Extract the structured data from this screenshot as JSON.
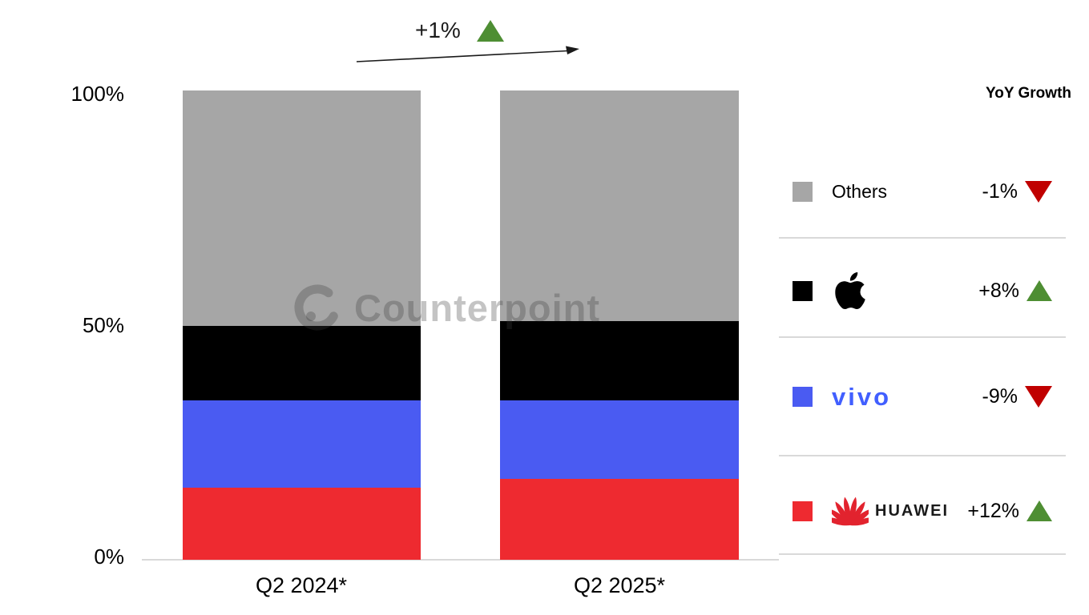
{
  "annotation": {
    "total_growth_label": "+1%"
  },
  "watermark": {
    "text": "Counterpoint"
  },
  "y_axis": {
    "ticks": [
      "100%",
      "50%",
      "0%"
    ]
  },
  "x_axis": {
    "categories": [
      "Q2 2024*",
      "Q2 2025*"
    ]
  },
  "legend": {
    "header": "YoY Growth",
    "rows": [
      {
        "name": "Others",
        "label": "Others",
        "color": "#A6A6A6",
        "growth": "-1%",
        "direction": "down"
      },
      {
        "name": "Apple",
        "label": "",
        "color": "#000000",
        "growth": "+8%",
        "direction": "up"
      },
      {
        "name": "vivo",
        "label": "vivo",
        "color": "#4A5BF2",
        "growth": "-9%",
        "direction": "down"
      },
      {
        "name": "HUAWEI",
        "label": "HUAWEI",
        "color": "#EE2A30",
        "growth": "+12%",
        "direction": "up"
      }
    ]
  },
  "chart_data": {
    "type": "bar",
    "stacked": true,
    "unit": "percent share of market",
    "categories": [
      "Q2 2024*",
      "Q2 2025*"
    ],
    "series": [
      {
        "name": "HUAWEI",
        "color": "#EE2A30",
        "values": [
          15.4,
          17.3
        ],
        "yoy_growth": "+12%"
      },
      {
        "name": "vivo",
        "color": "#4A5BF2",
        "values": [
          18.5,
          16.6
        ],
        "yoy_growth": "-9%"
      },
      {
        "name": "Apple",
        "color": "#000000",
        "values": [
          15.9,
          16.9
        ],
        "yoy_growth": "+8%"
      },
      {
        "name": "Others",
        "color": "#A6A6A6",
        "values": [
          50.2,
          49.2
        ],
        "yoy_growth": "-1%"
      }
    ],
    "total_yoy_growth": "+1%",
    "ylim": [
      0,
      100
    ],
    "y_ticks": [
      "0%",
      "50%",
      "100%"
    ],
    "legend_position": "right",
    "grid": false,
    "watermark": "Counterpoint"
  },
  "colors": {
    "up_triangle": "#4E8E33",
    "down_triangle": "#C00000",
    "divider": "#D9D9D9",
    "axis_line": "#D9D9D9"
  }
}
